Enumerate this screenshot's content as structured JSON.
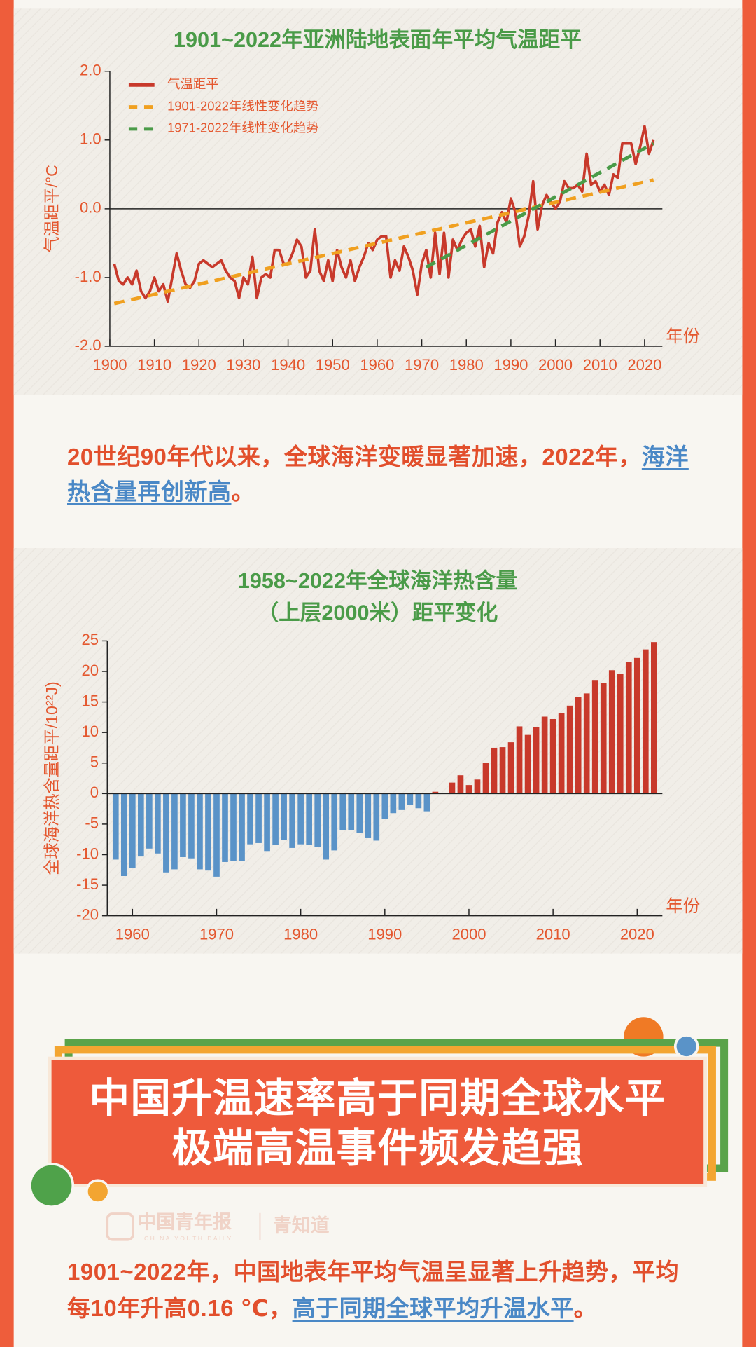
{
  "chart_data": [
    {
      "type": "line",
      "title": "1901~2022年亚洲陆地表面年平均气温距平",
      "ylabel": "气温距平/°C",
      "xlabel": "年份",
      "xlim": [
        1900,
        2024
      ],
      "ylim": [
        -2,
        2
      ],
      "xticks": [
        1900,
        1910,
        1920,
        1930,
        1940,
        1950,
        1960,
        1970,
        1980,
        1990,
        2000,
        2010,
        2020
      ],
      "yticks": [
        {
          "value": 2,
          "label": "2.0"
        },
        {
          "value": 1,
          "label": "1.0"
        },
        {
          "value": 0,
          "label": "0.0"
        },
        {
          "value": -1,
          "label": "-1.0"
        },
        {
          "value": -2,
          "label": "-2.0"
        }
      ],
      "legend": "upper left",
      "series": [
        {
          "name": "气温距平",
          "color": "#c8392b",
          "style": "solid",
          "x": [
            1901,
            1902,
            1903,
            1904,
            1905,
            1906,
            1907,
            1908,
            1909,
            1910,
            1911,
            1912,
            1913,
            1914,
            1915,
            1916,
            1917,
            1918,
            1919,
            1920,
            1921,
            1922,
            1923,
            1924,
            1925,
            1926,
            1927,
            1928,
            1929,
            1930,
            1931,
            1932,
            1933,
            1934,
            1935,
            1936,
            1937,
            1938,
            1939,
            1940,
            1941,
            1942,
            1943,
            1944,
            1945,
            1946,
            1947,
            1948,
            1949,
            1950,
            1951,
            1952,
            1953,
            1954,
            1955,
            1956,
            1957,
            1958,
            1959,
            1960,
            1961,
            1962,
            1963,
            1964,
            1965,
            1966,
            1967,
            1968,
            1969,
            1970,
            1971,
            1972,
            1973,
            1974,
            1975,
            1976,
            1977,
            1978,
            1979,
            1980,
            1981,
            1982,
            1983,
            1984,
            1985,
            1986,
            1987,
            1988,
            1989,
            1990,
            1991,
            1992,
            1993,
            1994,
            1995,
            1996,
            1997,
            1998,
            1999,
            2000,
            2001,
            2002,
            2003,
            2004,
            2005,
            2006,
            2007,
            2008,
            2009,
            2010,
            2011,
            2012,
            2013,
            2014,
            2015,
            2016,
            2017,
            2018,
            2019,
            2020,
            2021,
            2022
          ],
          "values": [
            -0.8,
            -1.05,
            -1.1,
            -1.0,
            -1.1,
            -0.9,
            -1.2,
            -1.3,
            -1.2,
            -1.0,
            -1.2,
            -1.1,
            -1.35,
            -1.0,
            -0.65,
            -0.9,
            -1.1,
            -1.15,
            -1.05,
            -0.8,
            -0.75,
            -0.8,
            -0.85,
            -0.8,
            -0.75,
            -0.9,
            -1.0,
            -1.05,
            -1.3,
            -1.0,
            -1.1,
            -0.7,
            -1.3,
            -1.0,
            -0.95,
            -1.0,
            -0.6,
            -0.6,
            -0.8,
            -0.8,
            -0.65,
            -0.45,
            -0.55,
            -1.0,
            -0.9,
            -0.3,
            -0.9,
            -1.05,
            -0.75,
            -1.05,
            -0.6,
            -0.85,
            -1.0,
            -0.75,
            -1.05,
            -0.85,
            -0.7,
            -0.5,
            -0.6,
            -0.45,
            -0.4,
            -0.4,
            -1.0,
            -0.75,
            -0.9,
            -0.55,
            -0.7,
            -0.9,
            -1.25,
            -0.8,
            -0.6,
            -1.0,
            -0.35,
            -0.95,
            -0.35,
            -1.0,
            -0.45,
            -0.6,
            -0.45,
            -0.35,
            -0.3,
            -0.55,
            -0.25,
            -0.85,
            -0.5,
            -0.65,
            -0.2,
            -0.05,
            -0.2,
            0.15,
            -0.05,
            -0.55,
            -0.4,
            -0.1,
            0.4,
            -0.3,
            0.05,
            0.2,
            0.1,
            0,
            0.1,
            0.4,
            0.3,
            0.3,
            0.35,
            0.25,
            0.8,
            0.35,
            0.4,
            0.25,
            0.35,
            0.2,
            0.5,
            0.45,
            0.95,
            0.95,
            0.95,
            0.65,
            0.9,
            1.2,
            0.8,
            1.0
          ]
        },
        {
          "name": "1901-2022年线性变化趋势",
          "color": "#f0a020",
          "style": "dashed",
          "x": [
            1901,
            2022
          ],
          "values": [
            -1.38,
            0.42
          ]
        },
        {
          "name": "1971-2022年线性变化趋势",
          "color": "#4a9b48",
          "style": "dashed",
          "x": [
            1971,
            2022
          ],
          "values": [
            -0.85,
            0.95
          ]
        }
      ]
    },
    {
      "type": "bar",
      "title": [
        "1958~2022年全球海洋热含量",
        "（上层2000米）距平变化"
      ],
      "ylabel": "全球海洋热含量距平/10²²J)",
      "xlabel": "年份",
      "xlim": [
        1957,
        2023
      ],
      "ylim": [
        -20,
        25
      ],
      "xticks": [
        1960,
        1970,
        1980,
        1990,
        2000,
        2010,
        2020
      ],
      "yticks": [
        -20,
        -15,
        -10,
        -5,
        0,
        5,
        10,
        15,
        20,
        25
      ],
      "positive_color": "#c8392b",
      "negative_color": "#5a93c8",
      "x": [
        1958,
        1959,
        1960,
        1961,
        1962,
        1963,
        1964,
        1965,
        1966,
        1967,
        1968,
        1969,
        1970,
        1971,
        1972,
        1973,
        1974,
        1975,
        1976,
        1977,
        1978,
        1979,
        1980,
        1981,
        1982,
        1983,
        1984,
        1985,
        1986,
        1987,
        1988,
        1989,
        1990,
        1991,
        1992,
        1993,
        1994,
        1995,
        1996,
        1997,
        1998,
        1999,
        2000,
        2001,
        2002,
        2003,
        2004,
        2005,
        2006,
        2007,
        2008,
        2009,
        2010,
        2011,
        2012,
        2013,
        2014,
        2015,
        2016,
        2017,
        2018,
        2019,
        2020,
        2021,
        2022
      ],
      "values": [
        -10.8,
        -13.5,
        -12.2,
        -10.3,
        -9.0,
        -9.8,
        -12.9,
        -12.4,
        -10.4,
        -10.6,
        -12.4,
        -12.6,
        -13.6,
        -11.2,
        -11.0,
        -11.0,
        -8.3,
        -8.1,
        -9.4,
        -8.4,
        -7.6,
        -8.9,
        -8.3,
        -8.4,
        -8.7,
        -10.8,
        -9.3,
        -6.0,
        -6.0,
        -6.5,
        -7.3,
        -7.7,
        -4.1,
        -3.2,
        -2.7,
        -1.8,
        -2.4,
        -2.9,
        0.3,
        0.1,
        1.8,
        3.0,
        1.4,
        2.3,
        5.0,
        7.5,
        7.6,
        8.4,
        11.0,
        9.6,
        10.9,
        12.6,
        12.2,
        13.2,
        14.4,
        15.8,
        16.4,
        18.6,
        18.1,
        20.2,
        19.6,
        21.6,
        22.2,
        23.6,
        24.8
      ]
    }
  ],
  "paragraph_1": {
    "text": "20世纪90年代以来，全球海洋变暖显著加速，2022年，",
    "link": "海洋热含量再创新高",
    "end": "。"
  },
  "banner": {
    "line_1": "中国升温速率高于同期全球水平",
    "line_2": "极端高温事件频发趋强"
  },
  "watermark": {
    "brand": "中国青年报",
    "brand_en": "CHINA YOUTH DAILY",
    "column": "青知道"
  },
  "paragraph_2": {
    "text": "1901~2022年，中国地表年平均气温呈显著上升趋势，平均每10年升高0.16 ℃，",
    "link": "高于同期全球平均升温水平",
    "end": "。"
  }
}
